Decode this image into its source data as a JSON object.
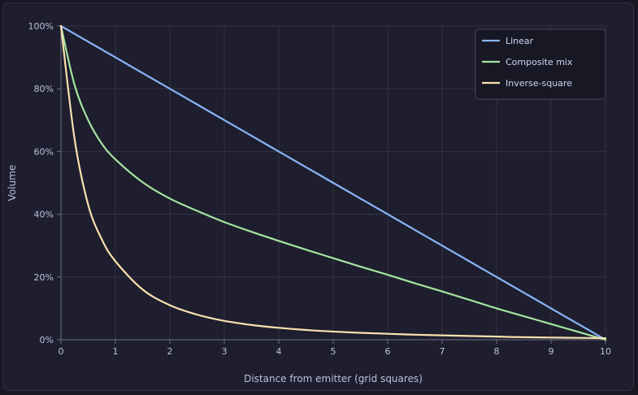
{
  "chart_data": {
    "type": "line",
    "title": "",
    "xlabel": "Distance from emitter (grid squares)",
    "ylabel": "Volume",
    "xlim": [
      0,
      10
    ],
    "ylim": [
      0,
      100
    ],
    "x_ticks": [
      "0",
      "1",
      "2",
      "3",
      "4",
      "5",
      "6",
      "7",
      "8",
      "9",
      "10"
    ],
    "y_ticks": [
      "0%",
      "20%",
      "40%",
      "60%",
      "80%",
      "100%"
    ],
    "grid": true,
    "legend_position": "top-right",
    "x": [
      0,
      0.25,
      0.5,
      0.75,
      1,
      1.5,
      2,
      2.5,
      3,
      3.5,
      4,
      4.5,
      5,
      5.5,
      6,
      6.5,
      7,
      7.5,
      8,
      8.5,
      9,
      9.5,
      10
    ],
    "series": [
      {
        "name": "Linear",
        "color": "#89b4fa",
        "values": [
          100,
          97.5,
          95,
          92.5,
          90,
          85,
          80,
          75,
          70,
          65,
          60,
          55,
          50,
          45,
          40,
          35,
          30,
          25,
          20,
          15,
          10,
          5,
          0
        ]
      },
      {
        "name": "Composite mix",
        "color": "#a6e3a1",
        "values": [
          100,
          81.2,
          70,
          62.5,
          57.5,
          50.2,
          45,
          41.1,
          37.5,
          34.4,
          31.5,
          28.7,
          26,
          23.3,
          20.7,
          18,
          15.4,
          12.7,
          10,
          7.5,
          5,
          2.5,
          0
        ]
      },
      {
        "name": "Inverse-square",
        "color": "#f9e2af",
        "values": [
          100,
          64,
          43,
          32,
          25,
          16,
          11,
          8,
          6,
          4.7,
          3.8,
          3.1,
          2.6,
          2.2,
          1.9,
          1.6,
          1.4,
          1.2,
          1.0,
          0.8,
          0.7,
          0.6,
          0.5
        ]
      }
    ]
  }
}
